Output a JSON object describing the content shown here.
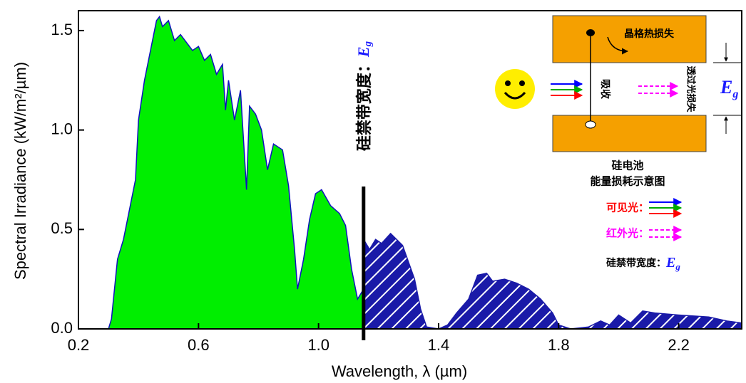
{
  "chart_data": {
    "type": "area",
    "x_label": "Wavelength, λ (µm)",
    "y_label": "Spectral Irradiance (kW/m²/µm)",
    "xlim": [
      0.2,
      2.41
    ],
    "ylim": [
      0,
      1.6
    ],
    "xticks": [
      0.2,
      0.6,
      {
        "value": 1,
        "label": "1.0"
      },
      1.4,
      1.8,
      2.2
    ],
    "yticks": [
      {
        "value": 0,
        "label": "0.0"
      },
      0.5,
      {
        "value": 1,
        "label": "1.0"
      },
      1.5
    ],
    "bandgap_x": 1.15,
    "series": [
      {
        "color": "#00ee00",
        "edge_color": "#1010c0",
        "hatch": false,
        "x": [
          0.3,
          0.31,
          0.33,
          0.35,
          0.37,
          0.39,
          0.4,
          0.42,
          0.44,
          0.46,
          0.47,
          0.48,
          0.5,
          0.52,
          0.54,
          0.56,
          0.58,
          0.6,
          0.62,
          0.64,
          0.66,
          0.68,
          0.69,
          0.7,
          0.72,
          0.74,
          0.76,
          0.77,
          0.79,
          0.81,
          0.83,
          0.85,
          0.88,
          0.9,
          0.92,
          0.93,
          0.95,
          0.97,
          0.99,
          1.01,
          1.04,
          1.07,
          1.09,
          1.11,
          1.13,
          1.15
        ],
        "values": [
          0,
          0.05,
          0.35,
          0.45,
          0.6,
          0.75,
          1.05,
          1.25,
          1.4,
          1.55,
          1.57,
          1.52,
          1.55,
          1.45,
          1.48,
          1.44,
          1.4,
          1.42,
          1.35,
          1.38,
          1.28,
          1.33,
          1.1,
          1.25,
          1.05,
          1.2,
          0.7,
          1.12,
          1.08,
          1.0,
          0.8,
          0.93,
          0.9,
          0.72,
          0.4,
          0.2,
          0.35,
          0.55,
          0.68,
          0.7,
          0.62,
          0.58,
          0.52,
          0.3,
          0.15,
          0.2
        ]
      },
      {
        "color": "#1a1aa8",
        "edge_color": "#1a1aa8",
        "hatch": true,
        "x": [
          1.15,
          1.17,
          1.19,
          1.21,
          1.24,
          1.28,
          1.32,
          1.34,
          1.36,
          1.4,
          1.43,
          1.46,
          1.5,
          1.53,
          1.56,
          1.58,
          1.62,
          1.66,
          1.7,
          1.74,
          1.78,
          1.8,
          1.84,
          1.9,
          1.94,
          1.97,
          2.0,
          2.04,
          2.08,
          2.12,
          2.2,
          2.3,
          2.36,
          2.41
        ],
        "values": [
          0.45,
          0.4,
          0.45,
          0.43,
          0.48,
          0.42,
          0.25,
          0.1,
          0.01,
          0,
          0.02,
          0.08,
          0.15,
          0.27,
          0.28,
          0.24,
          0.25,
          0.23,
          0.2,
          0.15,
          0.08,
          0.02,
          0,
          0.01,
          0.04,
          0.02,
          0.07,
          0.03,
          0.09,
          0.08,
          0.07,
          0.06,
          0.04,
          0.03
        ]
      }
    ],
    "bandgap_label": {
      "text": "硅禁带宽度：",
      "symbol": "E",
      "subscript": "g"
    },
    "inset": {
      "lattice_loss": "晶格热损失",
      "absorb": "吸收",
      "transmit_loss": "透过光损失",
      "eg": {
        "symbol": "E",
        "subscript": "g"
      },
      "cell": "硅电池",
      "caption": "能量损耗示意图",
      "visible": "可见光：",
      "infrared": "红外光：",
      "bandgap": {
        "text": "硅禁带宽度：",
        "symbol": "E",
        "subscript": "g"
      }
    }
  }
}
